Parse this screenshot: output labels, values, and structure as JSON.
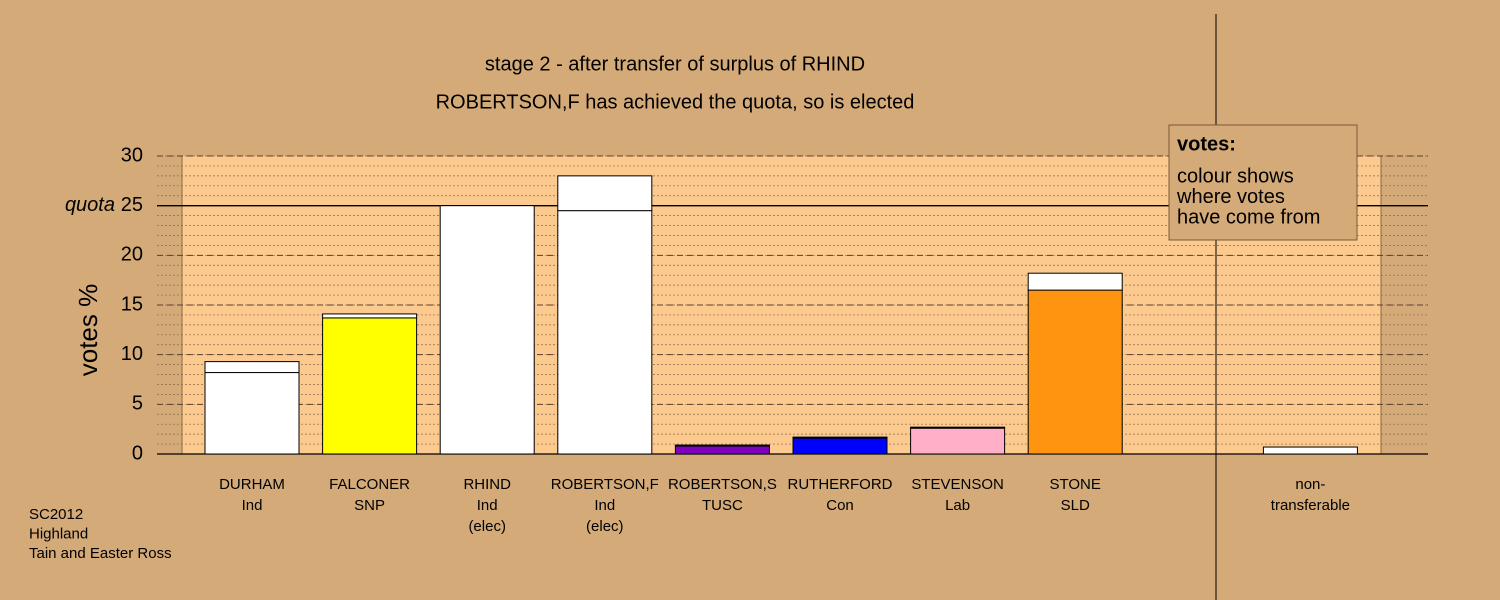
{
  "chart_data": {
    "type": "bar",
    "stacked": true,
    "title": "stage 2 - after transfer of surplus of RHIND",
    "subtitle": "ROBERTSON,F has achieved the quota, so is elected",
    "y_label": "votes %",
    "categories": [
      [
        "DURHAM",
        "Ind"
      ],
      [
        "FALCONER",
        "SNP"
      ],
      [
        "RHIND",
        "Ind",
        "(elec)"
      ],
      [
        "ROBERTSON,F",
        "Ind",
        "(elec)"
      ],
      [
        "ROBERTSON,S",
        "TUSC"
      ],
      [
        "RUTHERFORD",
        "Con"
      ],
      [
        "STEVENSON",
        "Lab"
      ],
      [
        "STONE",
        "SLD"
      ],
      null,
      [
        "non-",
        "transferable"
      ]
    ],
    "series": [
      {
        "colors": [
          "#ffffff",
          "#ffff00",
          "#ffffff",
          "#ffffff",
          "#8000c0",
          "#0000ff",
          "#ffb0c8",
          "#ff9410",
          null,
          "#ffffff"
        ],
        "values": [
          8.2,
          13.7,
          25,
          24.5,
          0.8,
          1.6,
          2.6,
          16.5,
          null,
          0.7
        ]
      },
      {
        "color": "#ffffff",
        "values": [
          1.1,
          0.4,
          0,
          3.5,
          0.1,
          0.1,
          0.1,
          1.7,
          null,
          null
        ]
      }
    ],
    "ylim": [
      0,
      30
    ],
    "yticks": [
      0,
      5,
      10,
      15,
      20,
      25,
      30
    ],
    "minor_grid": 1,
    "quota": {
      "value": 25,
      "label": "quota"
    },
    "legend": {
      "title": "votes:",
      "lines": [
        "colour shows",
        "where votes",
        "have come from"
      ]
    },
    "footer": [
      "SC2012",
      "Highland",
      "Tain and Easter Ross"
    ]
  }
}
